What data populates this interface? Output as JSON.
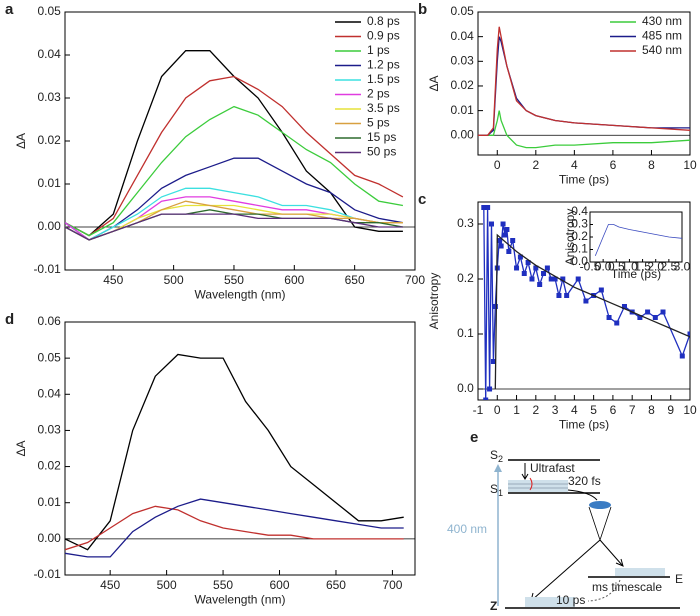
{
  "chart_data": [
    {
      "type": "line",
      "panel_label": "a",
      "xlabel": "Wavelength (nm)",
      "ylabel": "ΔA",
      "xlim": [
        410,
        700
      ],
      "xticks": [
        450,
        500,
        550,
        600,
        650,
        700
      ],
      "ylim": [
        -0.01,
        0.05
      ],
      "yticks": [
        -0.01,
        {
          "value": 0,
          "label": "0.00"
        },
        0.01,
        0.02,
        0.03,
        0.04,
        0.05
      ],
      "legend": "upper right",
      "x": [
        410,
        430,
        450,
        470,
        490,
        510,
        530,
        550,
        570,
        590,
        610,
        630,
        650,
        670,
        690
      ],
      "series": [
        {
          "name": "0.8 ps",
          "color": "#000000",
          "values": [
            0.001,
            -0.002,
            0.003,
            0.02,
            0.035,
            0.041,
            0.041,
            0.035,
            0.03,
            0.022,
            0.013,
            0.008,
            0.0,
            -0.001,
            -0.001
          ]
        },
        {
          "name": "0.9 ps",
          "color": "#c0302e",
          "values": [
            0.001,
            -0.002,
            0.002,
            0.012,
            0.022,
            0.03,
            0.034,
            0.035,
            0.032,
            0.028,
            0.022,
            0.017,
            0.012,
            0.01,
            0.007
          ]
        },
        {
          "name": "1 ps",
          "color": "#3ccc3c",
          "values": [
            0.001,
            -0.002,
            0.001,
            0.008,
            0.015,
            0.021,
            0.025,
            0.028,
            0.026,
            0.022,
            0.018,
            0.015,
            0.01,
            0.006,
            0.005
          ]
        },
        {
          "name": "1.2 ps",
          "color": "#1c1c8a",
          "values": [
            0.001,
            -0.003,
            0.0,
            0.004,
            0.009,
            0.012,
            0.014,
            0.016,
            0.016,
            0.013,
            0.01,
            0.008,
            0.004,
            0.002,
            0.001
          ]
        },
        {
          "name": "1.5 ps",
          "color": "#3ce0e0",
          "values": [
            0.001,
            -0.003,
            0.0,
            0.003,
            0.007,
            0.009,
            0.009,
            0.008,
            0.007,
            0.005,
            0.005,
            0.004,
            0.002,
            0.001,
            0.001
          ]
        },
        {
          "name": "2 ps",
          "color": "#e03ce0",
          "values": [
            0.001,
            -0.003,
            -0.001,
            0.002,
            0.006,
            0.007,
            0.007,
            0.006,
            0.005,
            0.004,
            0.004,
            0.003,
            0.002,
            0.001,
            0.001
          ]
        },
        {
          "name": "3.5 ps",
          "color": "#e6e23a",
          "values": [
            0.0,
            -0.003,
            -0.001,
            0.002,
            0.004,
            0.005,
            0.005,
            0.005,
            0.004,
            0.003,
            0.003,
            0.003,
            0.002,
            0.001,
            0.001
          ]
        },
        {
          "name": "5 ps",
          "color": "#d8a040",
          "values": [
            0.0,
            -0.003,
            -0.001,
            0.001,
            0.004,
            0.006,
            0.005,
            0.004,
            0.003,
            0.003,
            0.003,
            0.002,
            0.002,
            0.001,
            0.001
          ]
        },
        {
          "name": "15 ps",
          "color": "#2e6b2e",
          "values": [
            0.0,
            -0.003,
            -0.001,
            0.001,
            0.003,
            0.003,
            0.004,
            0.003,
            0.003,
            0.002,
            0.002,
            0.002,
            0.001,
            0.001,
            0.0
          ]
        },
        {
          "name": "50 ps",
          "color": "#5a2e7a",
          "values": [
            0.0,
            -0.003,
            -0.001,
            0.001,
            0.003,
            0.003,
            0.003,
            0.003,
            0.002,
            0.002,
            0.002,
            0.002,
            0.001,
            0.0,
            0.0
          ]
        }
      ]
    },
    {
      "type": "line",
      "panel_label": "b",
      "xlabel": "Time (ps)",
      "ylabel": "ΔA",
      "xlim": [
        -1,
        10
      ],
      "xticks": [
        0,
        2,
        4,
        6,
        8,
        10
      ],
      "ylim": [
        -0.008,
        0.05
      ],
      "yticks": [
        {
          "value": 0,
          "label": "0.00"
        },
        0.01,
        0.02,
        0.03,
        0.04,
        0.05
      ],
      "legend": "upper right",
      "x": [
        -1,
        -0.5,
        -0.2,
        0,
        0.1,
        0.2,
        0.5,
        1,
        1.5,
        2,
        3,
        4,
        6,
        8,
        10
      ],
      "series": [
        {
          "name": "430 nm",
          "color": "#3ccc3c",
          "values": [
            0.0,
            0.0,
            0.0,
            0.006,
            0.01,
            0.006,
            0.0,
            -0.004,
            -0.005,
            -0.005,
            -0.004,
            -0.004,
            -0.003,
            -0.003,
            -0.002
          ]
        },
        {
          "name": "485 nm",
          "color": "#1c1c8a",
          "values": [
            0.0,
            0.0,
            0.002,
            0.03,
            0.04,
            0.038,
            0.028,
            0.015,
            0.01,
            0.008,
            0.006,
            0.005,
            0.004,
            0.003,
            0.003
          ]
        },
        {
          "name": "540 nm",
          "color": "#c0302e",
          "values": [
            0.0,
            0.0,
            0.003,
            0.035,
            0.044,
            0.04,
            0.028,
            0.014,
            0.01,
            0.008,
            0.006,
            0.005,
            0.004,
            0.003,
            0.002
          ]
        }
      ]
    },
    {
      "type": "line",
      "panel_label": "c",
      "xlabel": "Time (ps)",
      "ylabel": "Anisotropy",
      "xlim": [
        -1,
        10
      ],
      "xticks": [
        -1,
        0,
        1,
        2,
        3,
        4,
        5,
        6,
        7,
        8,
        9,
        10
      ],
      "ylim": [
        -0.02,
        0.34
      ],
      "yticks": [
        {
          "value": 0,
          "label": "0.0"
        },
        0.1,
        0.2,
        0.3
      ],
      "series": [
        {
          "color": "#1f2fbf",
          "markers": true,
          "x": [
            -0.7,
            -0.6,
            -0.5,
            -0.4,
            -0.3,
            -0.2,
            -0.1,
            0,
            0.1,
            0.2,
            0.3,
            0.4,
            0.5,
            0.6,
            0.8,
            1.0,
            1.2,
            1.4,
            1.6,
            1.8,
            2.0,
            2.2,
            2.4,
            2.6,
            2.8,
            3.0,
            3.2,
            3.4,
            3.6,
            4.2,
            4.6,
            5.0,
            5.4,
            5.8,
            6.2,
            6.6,
            7.0,
            7.4,
            7.8,
            8.2,
            8.6,
            9.6,
            10
          ],
          "values": [
            0.33,
            -0.02,
            0.33,
            0.0,
            0.3,
            0.05,
            0.15,
            0.22,
            0.27,
            0.26,
            0.3,
            0.28,
            0.29,
            0.25,
            0.27,
            0.22,
            0.24,
            0.21,
            0.23,
            0.2,
            0.22,
            0.19,
            0.21,
            0.22,
            0.2,
            0.2,
            0.17,
            0.2,
            0.17,
            0.2,
            0.16,
            0.17,
            0.18,
            0.13,
            0.12,
            0.15,
            0.14,
            0.13,
            0.14,
            0.13,
            0.14,
            0.06,
            0.1
          ]
        },
        {
          "color": "#222222",
          "x": [
            -0.1,
            0,
            1,
            2,
            3,
            4,
            5,
            6,
            7,
            8,
            9,
            10
          ],
          "values": [
            0.0,
            0.28,
            0.25,
            0.225,
            0.205,
            0.185,
            0.17,
            0.155,
            0.14,
            0.125,
            0.11,
            0.095
          ]
        }
      ]
    },
    {
      "type": "line",
      "xlabel": "Time (ps)",
      "ylabel": "Anisotropy",
      "xlim": [
        -0.5,
        3.0
      ],
      "xticks": [
        -0.5,
        {
          "value": 0,
          "label": "0.0"
        },
        0.5,
        {
          "value": 1,
          "label": "1.0"
        },
        1.5,
        {
          "value": 2,
          "label": "2.0"
        },
        2.5,
        {
          "value": 3,
          "label": "3.0"
        }
      ],
      "ylim": [
        0,
        0.4
      ],
      "yticks": [
        {
          "value": 0,
          "label": "0.0"
        },
        0.1,
        0.2,
        0.3,
        0.4
      ],
      "series": [
        {
          "color": "#3a4abf",
          "x": [
            -0.3,
            0,
            0.2,
            0.4,
            0.6,
            1,
            1.5,
            2,
            2.5,
            3
          ],
          "values": [
            0.05,
            0.2,
            0.3,
            0.3,
            0.28,
            0.26,
            0.24,
            0.22,
            0.2,
            0.19
          ]
        }
      ]
    },
    {
      "type": "line",
      "panel_label": "d",
      "xlabel": "Wavelength (nm)",
      "ylabel": "ΔA",
      "xlim": [
        410,
        720
      ],
      "xticks": [
        450,
        500,
        550,
        600,
        650,
        700
      ],
      "ylim": [
        -0.01,
        0.06
      ],
      "yticks": [
        -0.01,
        {
          "value": 0,
          "label": "0.00"
        },
        0.01,
        0.02,
        0.03,
        0.04,
        0.05,
        0.06
      ],
      "x": [
        410,
        430,
        450,
        470,
        490,
        510,
        530,
        550,
        570,
        590,
        610,
        630,
        650,
        670,
        690,
        710
      ],
      "series": [
        {
          "color": "#000000",
          "values": [
            0.0,
            -0.003,
            0.005,
            0.03,
            0.045,
            0.051,
            0.05,
            0.05,
            0.038,
            0.03,
            0.02,
            0.015,
            0.01,
            0.005,
            0.005,
            0.006
          ]
        },
        {
          "color": "#c0302e",
          "values": [
            -0.003,
            -0.001,
            0.003,
            0.007,
            0.009,
            0.008,
            0.005,
            0.003,
            0.002,
            0.001,
            0.001,
            0.0,
            0.0,
            0.0,
            0.0,
            0.0
          ]
        },
        {
          "color": "#1c1c8a",
          "values": [
            -0.004,
            -0.005,
            -0.005,
            0.002,
            0.006,
            0.009,
            0.011,
            0.01,
            0.009,
            0.008,
            0.007,
            0.006,
            0.005,
            0.004,
            0.003,
            0.003
          ]
        }
      ]
    }
  ],
  "diagram": {
    "panel_label": "e",
    "s2": "S",
    "s2_sub": "2",
    "s1": "S",
    "s1_sub": "1",
    "ultrafast": "Ultrafast",
    "fs": "320 fs",
    "excitation": "400 nm",
    "e": "E",
    "ms": "ms timescale",
    "ps": "10 ps",
    "z": "Z"
  }
}
